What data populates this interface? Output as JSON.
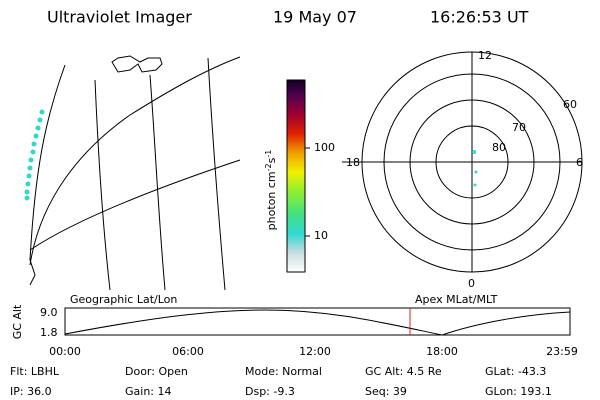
{
  "header": {
    "instrument": "Ultraviolet Imager",
    "date": "19 May 07",
    "time": "16:26:53 UT"
  },
  "colorbar": {
    "label": [
      "photon cm",
      "-2",
      "s",
      "-1"
    ],
    "ticks": [
      "100",
      "10"
    ]
  },
  "polar": {
    "labels": [
      "12",
      "60",
      "70",
      "80",
      "18",
      "6",
      "0"
    ]
  },
  "timeline": {
    "axis_label": "GC Alt",
    "yticks": [
      "9.0",
      "1.8"
    ],
    "left_title": "Geographic Lat/Lon",
    "right_title": "Apex MLat/MLT",
    "xticks": [
      "00:00",
      "06:00",
      "12:00",
      "18:00",
      "23:59"
    ]
  },
  "status": [
    [
      "Flt: LBHL",
      "IP: 36.0"
    ],
    [
      "Door: Open",
      "Gain: 14"
    ],
    [
      "Mode: Normal",
      "Dsp:   -9.3"
    ],
    [
      "GC Alt: 4.5 Re",
      "Seq: 39"
    ],
    [
      "GLat: -43.3",
      "GLon: 193.1"
    ]
  ]
}
